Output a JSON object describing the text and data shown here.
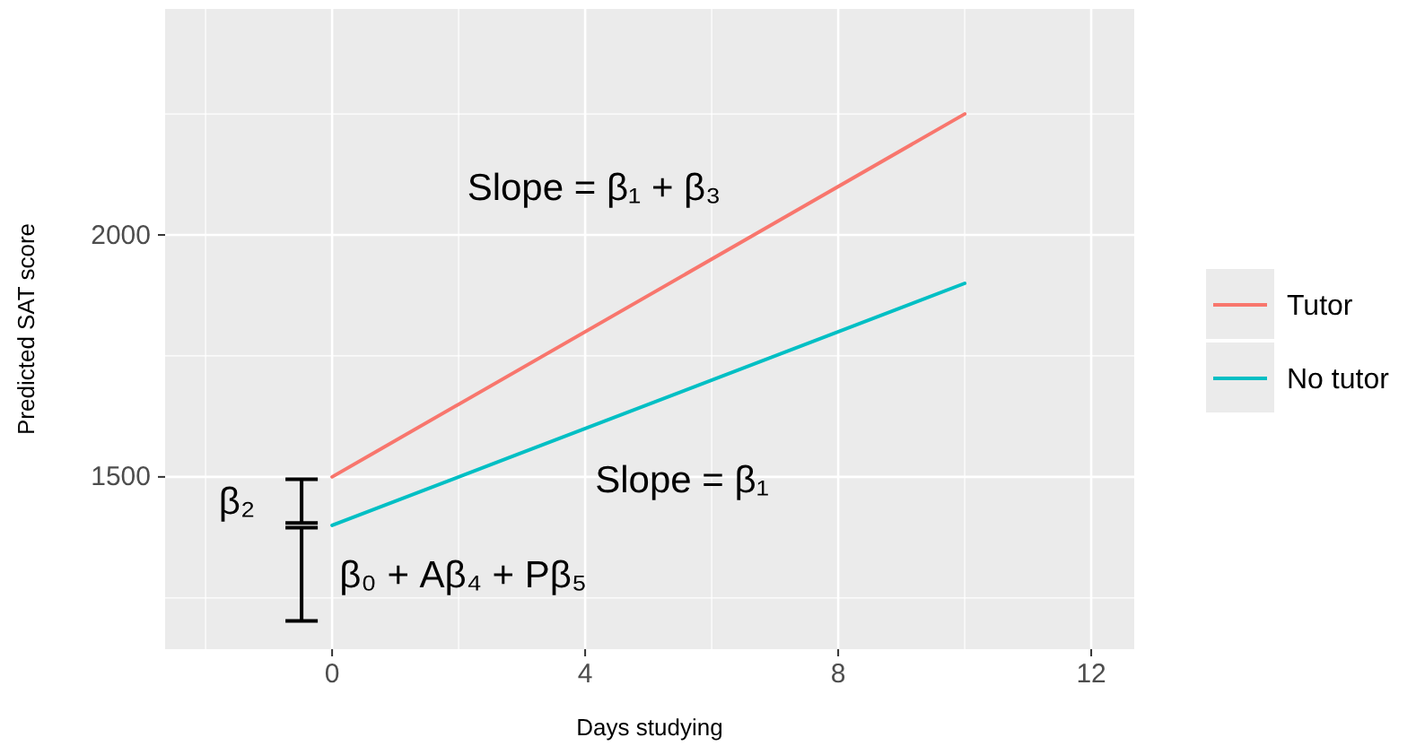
{
  "chart_data": {
    "type": "line",
    "xlabel": "Days studying",
    "ylabel": "Predicted SAT score",
    "xlim": [
      -2.64,
      12.68
    ],
    "ylim": [
      1144,
      2467
    ],
    "xticks": [
      0,
      4,
      8,
      12
    ],
    "yticks": [
      1500,
      2000
    ],
    "grid": true,
    "legend": "right",
    "line_style": "solid",
    "marker": "none",
    "x": [
      0,
      10
    ],
    "series": [
      {
        "name": "Tutor",
        "color": "#f8766d",
        "values": [
          1500,
          2250
        ]
      },
      {
        "name": "No tutor",
        "color": "#00bfc4",
        "values": [
          1400,
          1900
        ]
      }
    ],
    "annotations": [
      "Slope = β₁ + β₃",
      "Slope = β₁",
      "β₂",
      "β₀ + Aβ₄ + Pβ₅"
    ]
  }
}
